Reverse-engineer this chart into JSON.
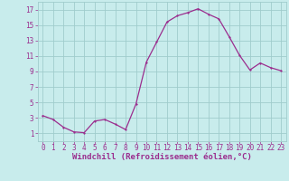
{
  "x": [
    0,
    1,
    2,
    3,
    4,
    5,
    6,
    7,
    8,
    9,
    10,
    11,
    12,
    13,
    14,
    15,
    16,
    17,
    18,
    19,
    20,
    21,
    22,
    23
  ],
  "y": [
    3.3,
    2.8,
    1.8,
    1.2,
    1.1,
    2.6,
    2.8,
    2.2,
    1.5,
    4.8,
    10.2,
    12.8,
    15.4,
    16.2,
    16.6,
    17.1,
    16.4,
    15.8,
    13.5,
    11.1,
    9.2,
    10.1,
    9.5,
    9.1
  ],
  "line_color": "#9b2d8e",
  "marker_color": "#9b2d8e",
  "bg_color": "#c8ecec",
  "grid_color": "#a0cccc",
  "xlabel": "Windchill (Refroidissement éolien,°C)",
  "xlabel_color": "#9b2d8e",
  "xlabel_fontsize": 6.5,
  "ylabel_ticks": [
    1,
    3,
    5,
    7,
    9,
    11,
    13,
    15,
    17
  ],
  "xtick_labels": [
    "0",
    "1",
    "2",
    "3",
    "4",
    "5",
    "6",
    "7",
    "8",
    "9",
    "10",
    "11",
    "12",
    "13",
    "14",
    "15",
    "16",
    "17",
    "18",
    "19",
    "20",
    "21",
    "22",
    "23"
  ],
  "ylim": [
    0.0,
    18.0
  ],
  "xlim": [
    -0.5,
    23.5
  ],
  "tick_color": "#9b2d8e",
  "tick_fontsize": 5.5,
  "linewidth": 0.9,
  "markersize": 2.0
}
